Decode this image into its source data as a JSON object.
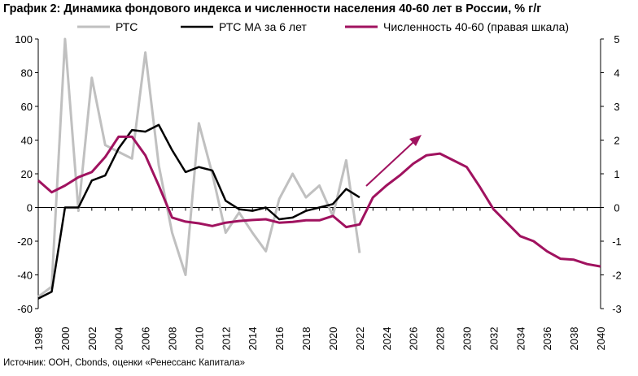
{
  "title": "График 2: Динамика фондового индекса и численности населения 40-60 лет в России, % г/г",
  "source": "Источник: ООН, Cbonds, оценки «Ренессанс Капитала»",
  "colors": {
    "rts": "#c0c0c0",
    "rts_ma": "#000000",
    "population": "#a0125f",
    "axis": "#000000"
  },
  "chart_data": {
    "type": "line",
    "title": "График 2: Динамика фондового индекса и численности населения 40-60 лет в России, % г/г",
    "x_ticks": [
      "1998",
      "2000",
      "2002",
      "2004",
      "2006",
      "2008",
      "2010",
      "2012",
      "2014",
      "2016",
      "2018",
      "2020",
      "2022",
      "2024",
      "2026",
      "2028",
      "2030",
      "2032",
      "2034",
      "2036",
      "2038",
      "2040"
    ],
    "xlim": [
      1998,
      2040
    ],
    "y_left": {
      "ylim": [
        -60,
        100
      ],
      "ticks": [
        "100",
        "80",
        "60",
        "40",
        "20",
        "0",
        "-20",
        "-40",
        "-60"
      ]
    },
    "y_right": {
      "ylim": [
        -3,
        5
      ],
      "ticks": [
        "5",
        "4",
        "3",
        "2",
        "1",
        "0",
        "-1",
        "-2",
        "-3"
      ]
    },
    "legend_position": "top",
    "series": [
      {
        "name": "РТС",
        "axis": "left",
        "x": [
          1998,
          1999,
          2000,
          2001,
          2002,
          2003,
          2004,
          2005,
          2006,
          2007,
          2008,
          2009,
          2010,
          2011,
          2012,
          2013,
          2014,
          2015,
          2016,
          2017,
          2018,
          2019,
          2020,
          2021,
          2022
        ],
        "values": [
          -53,
          -47,
          100,
          -2,
          77,
          37,
          33,
          29,
          92,
          25,
          -15,
          -40,
          50,
          20,
          -15,
          -3,
          -15,
          -26,
          5,
          20,
          6,
          13,
          -5,
          28,
          -27
        ]
      },
      {
        "name": "РТС МА за 6 лет",
        "axis": "left",
        "x": [
          1998,
          1999,
          2000,
          2001,
          2002,
          2003,
          2004,
          2005,
          2006,
          2007,
          2008,
          2009,
          2010,
          2011,
          2012,
          2013,
          2014,
          2015,
          2016,
          2017,
          2018,
          2019,
          2020,
          2021,
          2022
        ],
        "values": [
          -54,
          -50,
          0,
          0,
          16,
          19,
          35,
          46,
          45,
          49,
          34,
          21,
          24,
          22,
          4,
          -1,
          -2,
          0,
          -7,
          -6,
          -2,
          0,
          2,
          11,
          6
        ]
      },
      {
        "name": "Численность 40-60 (правая шкала)",
        "axis": "right",
        "x": [
          1998,
          1999,
          2000,
          2001,
          2002,
          2003,
          2004,
          2005,
          2006,
          2007,
          2008,
          2009,
          2010,
          2011,
          2012,
          2013,
          2014,
          2015,
          2016,
          2017,
          2018,
          2019,
          2020,
          2021,
          2022,
          2023,
          2024,
          2025,
          2026,
          2027,
          2028,
          2029,
          2030,
          2031,
          2032,
          2033,
          2034,
          2035,
          2036,
          2037,
          2038,
          2039,
          2040
        ],
        "values": [
          0.8,
          0.45,
          0.65,
          0.9,
          1.05,
          1.5,
          2.1,
          2.1,
          1.55,
          0.65,
          -0.3,
          -0.42,
          -0.47,
          -0.55,
          -0.45,
          -0.4,
          -0.37,
          -0.35,
          -0.45,
          -0.43,
          -0.38,
          -0.38,
          -0.25,
          -0.58,
          -0.5,
          0.3,
          0.65,
          0.95,
          1.3,
          1.55,
          1.6,
          1.4,
          1.2,
          0.6,
          -0.05,
          -0.45,
          -0.85,
          -1.0,
          -1.3,
          -1.52,
          -1.55,
          -1.68,
          -1.75
        ]
      }
    ]
  }
}
